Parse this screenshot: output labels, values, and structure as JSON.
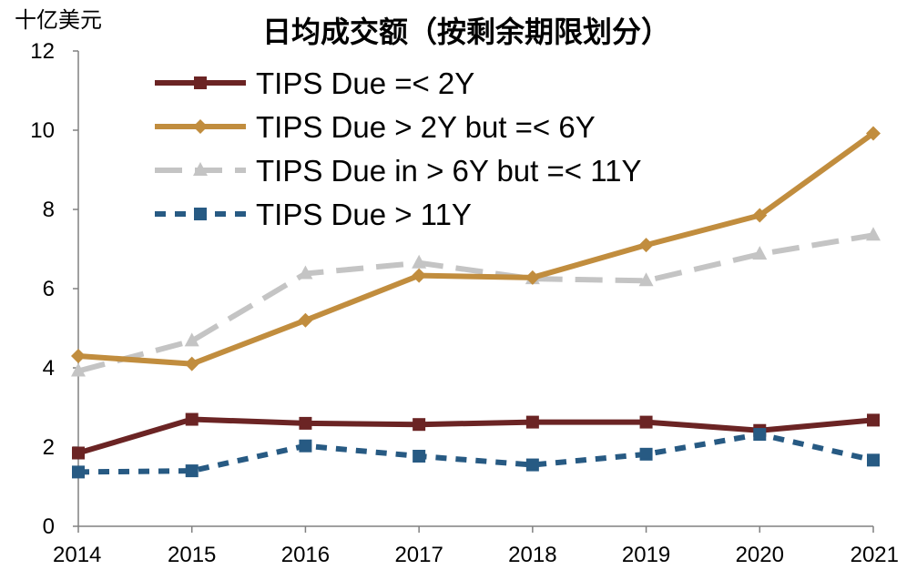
{
  "chart_data": {
    "type": "line",
    "title": "日均成交额（按剩余期限划分）",
    "ylabel": "十亿美元",
    "xlabel": "",
    "x": [
      "2014",
      "2015",
      "2016",
      "2017",
      "2018",
      "2019",
      "2020",
      "2021"
    ],
    "ylim": [
      0,
      12
    ],
    "yticks": [
      0,
      2,
      4,
      6,
      8,
      10,
      12
    ],
    "grid": false,
    "legend_position": "top-left",
    "series": [
      {
        "name": "TIPS Due =< 2Y",
        "color": "#6B2424",
        "dash": "solid",
        "marker": "square",
        "values": [
          1.85,
          2.7,
          2.6,
          2.57,
          2.63,
          2.63,
          2.42,
          2.68
        ]
      },
      {
        "name": "TIPS Due > 2Y but =< 6Y",
        "color": "#C18D3E",
        "dash": "solid",
        "marker": "diamond",
        "values": [
          4.3,
          4.1,
          5.2,
          6.33,
          6.28,
          7.1,
          7.85,
          9.92
        ]
      },
      {
        "name": "TIPS Due in > 6Y but =< 11Y",
        "color": "#C4C4C4",
        "dash": "long-dash",
        "marker": "triangle",
        "values": [
          3.92,
          4.68,
          6.38,
          6.65,
          6.25,
          6.2,
          6.87,
          7.35
        ]
      },
      {
        "name": "TIPS Due > 11Y",
        "color": "#275A83",
        "dash": "short-dash",
        "marker": "square",
        "values": [
          1.37,
          1.4,
          2.03,
          1.77,
          1.55,
          1.82,
          2.32,
          1.67
        ]
      }
    ]
  }
}
